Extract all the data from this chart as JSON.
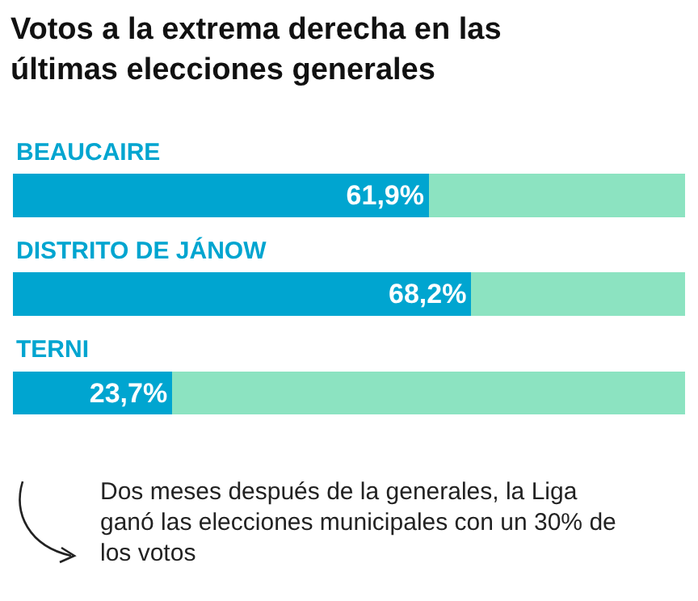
{
  "chart_data": {
    "type": "bar",
    "title": "Votos a la extrema derecha en las últimas elecciones generales",
    "categories": [
      "BEAUCAIRE",
      "DISTRITO DE JÁNOW",
      "TERNI"
    ],
    "orientation": "horizontal",
    "stacked": true,
    "xlim": [
      0,
      100
    ],
    "series": [
      {
        "color": "#00a5d0",
        "values": [
          61.9,
          68.2,
          23.7
        ],
        "value_labels": [
          "61,9%",
          "68,2%",
          "23,7%"
        ]
      },
      {
        "color": "#8ce3c1",
        "values": [
          38.1,
          31.8,
          76.3
        ]
      }
    ],
    "annotations": [
      "Dos meses después de la generales, la Liga ganó las elecciones municipales con un 30% de los votos"
    ]
  }
}
